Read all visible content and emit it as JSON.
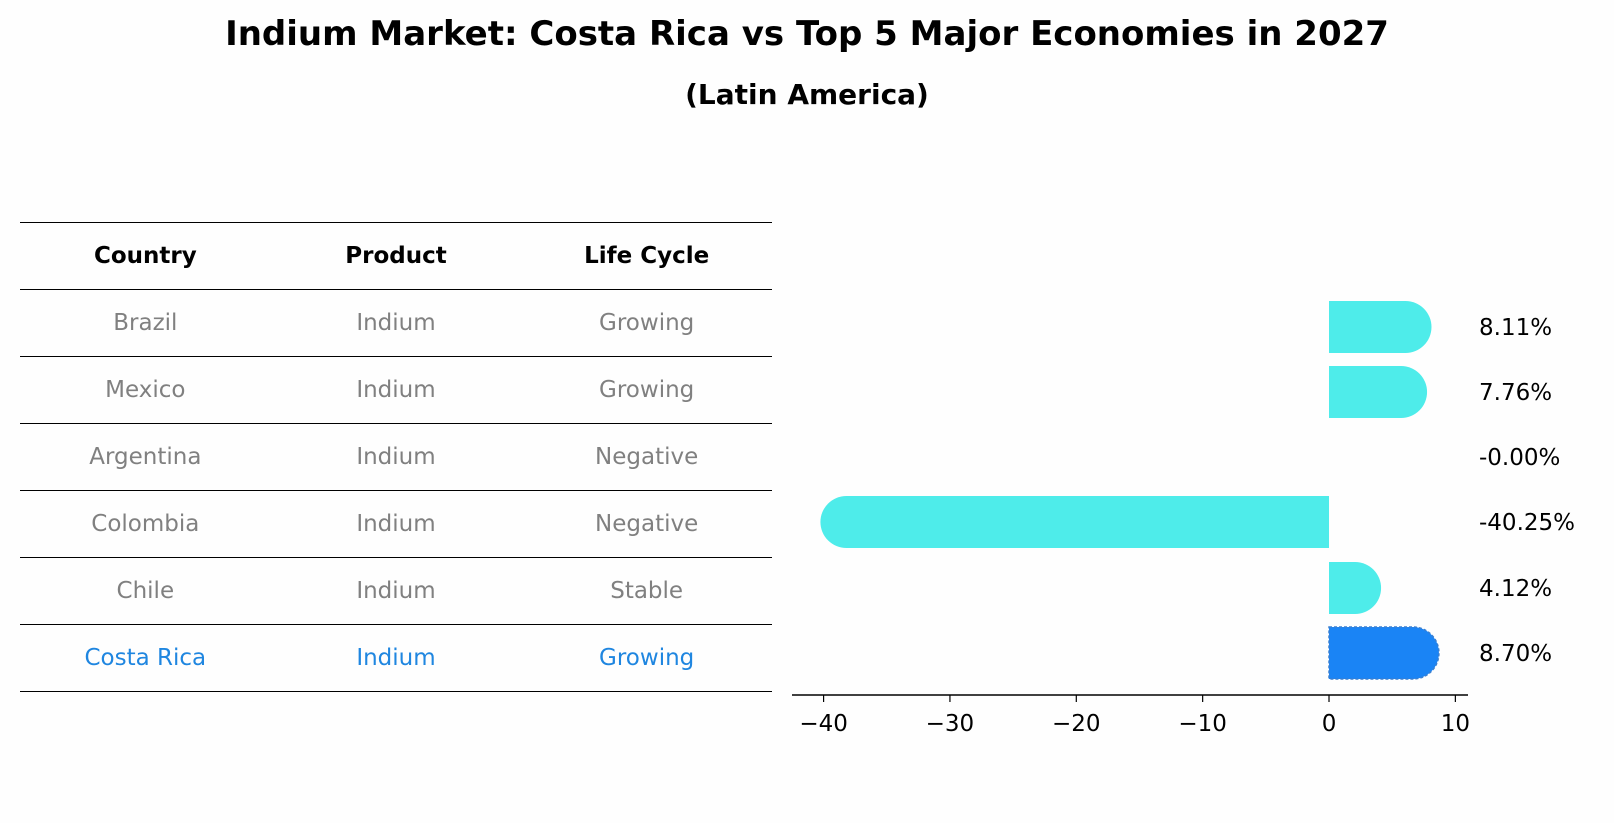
{
  "title": "Indium Market: Costa Rica vs Top 5 Major Economies in 2027",
  "subtitle": "(Latin America)",
  "table": {
    "headers": [
      "Country",
      "Product",
      "Life Cycle"
    ],
    "rows": [
      [
        "Brazil",
        "Indium",
        "Growing"
      ],
      [
        "Mexico",
        "Indium",
        "Growing"
      ],
      [
        "Argentina",
        "Indium",
        "Negative"
      ],
      [
        "Colombia",
        "Indium",
        "Negative"
      ],
      [
        "Chile",
        "Indium",
        "Stable"
      ],
      [
        "Costa Rica",
        "Indium",
        "Growing"
      ]
    ],
    "highlight_row": 5
  },
  "chart_data": {
    "type": "bar",
    "orientation": "horizontal",
    "categories": [
      "Brazil",
      "Mexico",
      "Argentina",
      "Colombia",
      "Chile",
      "Costa Rica"
    ],
    "values": [
      8.11,
      7.76,
      -0.0,
      -40.25,
      4.12,
      8.7
    ],
    "value_labels": [
      "8.11%",
      "7.76%",
      "-0.00%",
      "-40.25%",
      "4.12%",
      "8.70%"
    ],
    "xlim": [
      -42.5,
      11
    ],
    "xticks": [
      -40,
      -30,
      -20,
      -10,
      0,
      10
    ],
    "xtick_labels": [
      "−40",
      "−30",
      "−20",
      "−10",
      "0",
      "10"
    ],
    "colors": {
      "default": "#4eecea",
      "highlight": "#1a84f5"
    },
    "highlight_index": 5
  }
}
